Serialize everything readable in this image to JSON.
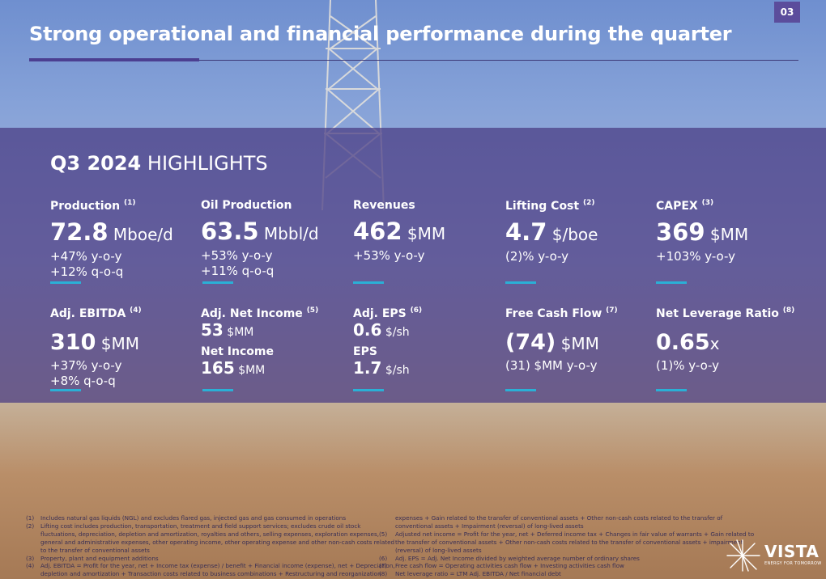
{
  "page_number": "03",
  "title": "Strong operational and financial performance during the quarter",
  "highlights": {
    "bold": "Q3 2024",
    "rest": " HIGHLIGHTS"
  },
  "metrics_row1": [
    {
      "label": "Production",
      "ref": "(1)",
      "value": "72.8",
      "unit": " Mboe/d",
      "sub1": "+47% y-o-y",
      "sub2": "+12% q-o-q"
    },
    {
      "label": "Oil Production",
      "ref": "",
      "value": "63.5",
      "unit": " Mbbl/d",
      "sub1": "+53% y-o-y",
      "sub2": "+11% q-o-q"
    },
    {
      "label": "Revenues",
      "ref": "",
      "value": "462",
      "unit": " $MM",
      "sub1": "+53% y-o-y",
      "sub2": ""
    },
    {
      "label": "Lifting Cost",
      "ref": "(2)",
      "value": "4.7",
      "unit": " $/boe",
      "sub1": "(2)% y-o-y",
      "sub2": ""
    },
    {
      "label": "CAPEX",
      "ref": "(3)",
      "value": "369",
      "unit": " $MM",
      "sub1": "+103% y-o-y",
      "sub2": ""
    }
  ],
  "ebitda": {
    "label": "Adj. EBITDA",
    "ref": "(4)",
    "value": "310",
    "unit": " $MM",
    "sub1": "+37% y-o-y",
    "sub2": "+8% q-o-q"
  },
  "net_income": {
    "label": "Adj. Net Income",
    "ref": "(5)",
    "value": "53",
    "unit": " $MM",
    "label2": "Net Income",
    "value2": "165",
    "unit2": " $MM"
  },
  "eps": {
    "label": "Adj. EPS",
    "ref": "(6)",
    "value": "0.6",
    "unit": " $/sh",
    "label2": "EPS",
    "value2": "1.7",
    "unit2": " $/sh"
  },
  "fcf": {
    "label": "Free Cash Flow",
    "ref": "(7)",
    "value": "(74)",
    "unit": " $MM",
    "sub1": "(31) $MM y-o-y"
  },
  "leverage": {
    "label": "Net Leverage Ratio",
    "ref": "(8)",
    "value": "0.65",
    "unit": "x",
    "sub1": "(1)% y-o-y"
  },
  "footnotes_left": [
    {
      "n": "(1)",
      "t": "Includes natural gas liquids (NGL) and excludes flared gas, injected gas and gas consumed in operations"
    },
    {
      "n": "(2)",
      "t": "Lifting cost includes production, transportation, treatment and field support services; excludes crude oil stock"
    },
    {
      "n": "",
      "t": "fluctuations, depreciation, depletion and amortization, royalties and others, selling expenses, exploration expenses,"
    },
    {
      "n": "",
      "t": "general and administrative expenses, other operating income, other operating expense and other non-cash costs related"
    },
    {
      "n": "",
      "t": "to the transfer of conventional assets"
    },
    {
      "n": "(3)",
      "t": "Property, plant and equipment additions"
    },
    {
      "n": "(4)",
      "t": "Adj. EBITDA = Profit for the year, net + Income tax (expense) / benefit + Financial income (expense), net + Depreciation,"
    },
    {
      "n": "",
      "t": "depletion and amortization + Transaction costs related to business combinations + Restructuring and reorganization"
    }
  ],
  "footnotes_right": [
    {
      "n": "",
      "t": "expenses + Gain related to the transfer of conventional assets + Other non-cash costs related to the transfer of"
    },
    {
      "n": "",
      "t": "conventional assets + Impairment (reversal) of long-lived assets"
    },
    {
      "n": "(5)",
      "t": "Adjusted net income  = Profit for the year, net + Deferred income tax + Changes in fair value of warrants + Gain related to"
    },
    {
      "n": "",
      "t": "the transfer of conventional assets + Other non-cash costs related to the transfer of conventional assets + impairment"
    },
    {
      "n": "",
      "t": "(reversal) of long-lived assets"
    },
    {
      "n": "(6)",
      "t": "Adj. EPS = Adj. Net Income divided by weighted average number of ordinary shares"
    },
    {
      "n": "(7)",
      "t": "Free cash flow = Operating activities cash flow + Investing activities cash flow"
    },
    {
      "n": "(8)",
      "t": "Net leverage ratio = LTM Adj. EBITDA / Net financial debt"
    }
  ],
  "logo": {
    "name": "VISTA",
    "tagline": "ENERGY FOR TOMORROW"
  },
  "colors": {
    "accent": "#2ab0d6",
    "title_bar": "#4b3f91",
    "overlay": "#483a82"
  }
}
